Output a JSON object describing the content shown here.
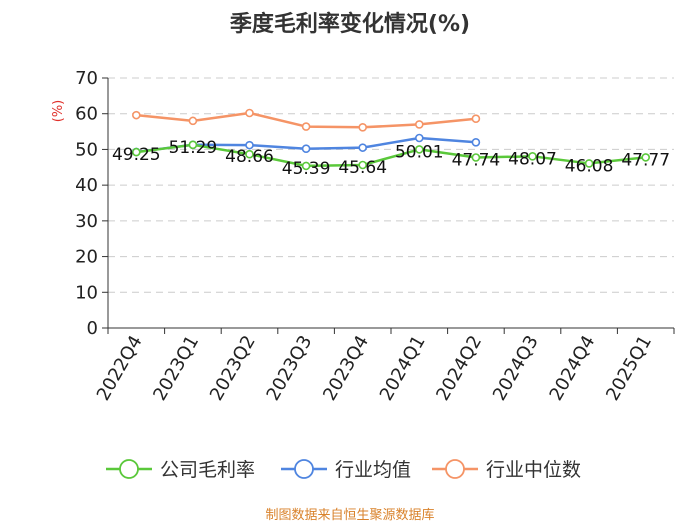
{
  "chart_data": {
    "type": "line",
    "title": "季度毛利率变化情况(%)",
    "unit": "(%)",
    "categories": [
      "2022Q4",
      "2023Q1",
      "2023Q2",
      "2023Q3",
      "2023Q4",
      "2024Q1",
      "2024Q2",
      "2024Q3",
      "2024Q4",
      "2025Q1"
    ],
    "ylim": [
      0,
      70
    ],
    "yticks": [
      0,
      10,
      20,
      30,
      40,
      50,
      60,
      70
    ],
    "grid": true,
    "legend_position": "bottom",
    "series": [
      {
        "name": "公司毛利率",
        "color": "#5ac83a",
        "labeled": true,
        "values": [
          49.25,
          51.29,
          48.66,
          45.39,
          45.64,
          50.01,
          47.74,
          48.07,
          46.08,
          47.77
        ]
      },
      {
        "name": "行业均值",
        "color": "#4f85e0",
        "labeled": false,
        "values": [
          49.3,
          51.3,
          51.2,
          50.2,
          50.5,
          53.2,
          52.0,
          null,
          null,
          null
        ]
      },
      {
        "name": "行业中位数",
        "color": "#f59466",
        "labeled": false,
        "values": [
          59.6,
          58.0,
          60.2,
          56.4,
          56.2,
          57.0,
          58.6,
          null,
          null,
          null
        ]
      }
    ]
  },
  "footer": {
    "source": "制图数据来自恒生聚源数据库"
  }
}
